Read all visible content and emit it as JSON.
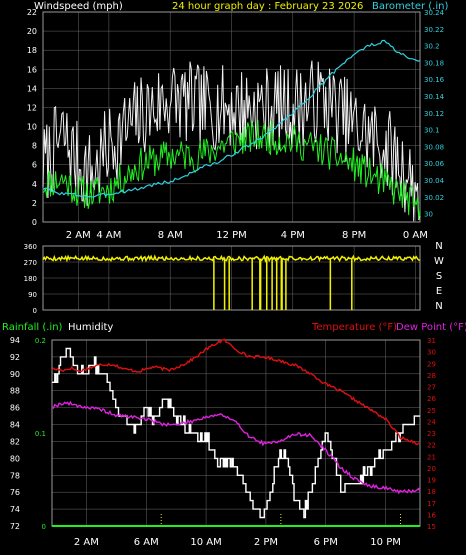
{
  "colors": {
    "background": "#000000",
    "grid": "#6a6a6a",
    "frame": "#9a9a9a",
    "wind_gust": "#f0f0f0",
    "wind_avg": "#22ee22",
    "barometer": "#30d0e0",
    "direction": "#f0f000",
    "humidity": "#ffffff",
    "rainfall": "#22ee22",
    "temperature": "#dd1010",
    "dewpoint": "#dd22dd"
  },
  "chart_data": [
    {
      "type": "line",
      "header": {
        "left": "Windspeed (mph)",
        "center": "24 hour graph day : February 23 2026",
        "right": "Barometer (.in)"
      },
      "y_left": {
        "ticks": [
          "0",
          "2",
          "4",
          "6",
          "8",
          "10",
          "12",
          "14",
          "16",
          "18",
          "20",
          "22"
        ],
        "range": [
          0,
          22
        ]
      },
      "y_right": {
        "ticks": [
          "30",
          "30.02",
          "30.04",
          "30.06",
          "30.08",
          "30.1",
          "30.12",
          "30.14",
          "30.16",
          "30.18",
          "30.2",
          "30.22",
          "30.24"
        ],
        "range": [
          29.99,
          30.24
        ]
      },
      "x_ticks": [
        {
          "label": "2 AM",
          "h": 2
        },
        {
          "label": "4 AM",
          "h": 4
        },
        {
          "label": "8 AM",
          "h": 8
        },
        {
          "label": "12 PM",
          "h": 12
        },
        {
          "label": "4 PM",
          "h": 16
        },
        {
          "label": "8 PM",
          "h": 20
        },
        {
          "label": "0 AM",
          "h": 24
        }
      ],
      "x_range_hours": [
        -0.3,
        24.3
      ],
      "series": [
        {
          "key": "gust",
          "color": "#f0f0f0",
          "anchors": [
            [
              -0.2,
              6
            ],
            [
              1,
              9
            ],
            [
              2,
              6
            ],
            [
              3,
              5
            ],
            [
              4,
              8
            ],
            [
              6,
              11
            ],
            [
              8,
              13
            ],
            [
              10,
              12
            ],
            [
              12,
              12
            ],
            [
              14,
              12
            ],
            [
              16,
              12
            ],
            [
              18,
              13
            ],
            [
              20,
              10
            ],
            [
              22,
              8
            ],
            [
              23.5,
              5
            ],
            [
              24.2,
              3
            ]
          ],
          "jitter": 4.5,
          "seed": 7
        },
        {
          "key": "avg",
          "color": "#22ee22",
          "anchors": [
            [
              -0.2,
              4
            ],
            [
              1,
              4.5
            ],
            [
              2,
              3.2
            ],
            [
              3,
              3
            ],
            [
              4,
              3.5
            ],
            [
              6,
              6
            ],
            [
              8,
              7
            ],
            [
              10,
              7
            ],
            [
              12,
              8.5
            ],
            [
              14,
              9
            ],
            [
              16,
              8.5
            ],
            [
              18,
              7.5
            ],
            [
              20,
              6
            ],
            [
              22,
              4
            ],
            [
              23.5,
              2.5
            ],
            [
              24.2,
              1
            ]
          ],
          "jitter": 1.8,
          "seed": 11
        },
        {
          "key": "barometer",
          "color": "#30d0e0",
          "anchors": [
            [
              -0.2,
              30.03
            ],
            [
              0.5,
              30.025
            ],
            [
              2,
              30.022
            ],
            [
              3,
              30.02
            ],
            [
              4.5,
              30.025
            ],
            [
              6,
              30.03
            ],
            [
              7,
              30.035
            ],
            [
              8,
              30.038
            ],
            [
              9,
              30.045
            ],
            [
              10,
              30.055
            ],
            [
              11,
              30.06
            ],
            [
              12,
              30.07
            ],
            [
              14,
              30.09
            ],
            [
              16,
              30.12
            ],
            [
              18,
              30.155
            ],
            [
              19,
              30.175
            ],
            [
              20,
              30.19
            ],
            [
              21,
              30.2
            ],
            [
              22,
              30.205
            ],
            [
              23,
              30.19
            ],
            [
              24.2,
              30.18
            ]
          ],
          "jitter": 0.002,
          "seed": 3
        }
      ]
    },
    {
      "type": "line",
      "y_left": {
        "ticks": [
          "0",
          "90",
          "180",
          "270",
          "360"
        ],
        "range": [
          0,
          360
        ]
      },
      "y_right_labels": [
        "N",
        "W",
        "S",
        "E",
        "N"
      ],
      "x_range_hours": [
        -0.3,
        24.3
      ],
      "series": [
        {
          "key": "direction",
          "color": "#f0f000",
          "anchors": [
            [
              -0.2,
              290
            ],
            [
              24.2,
              290
            ]
          ],
          "jitter": 12,
          "seed": 5,
          "drops": [
            [
              10.8,
              10.9
            ],
            [
              11.5,
              11.6
            ],
            [
              11.8,
              11.9
            ],
            [
              13.3,
              13.4
            ],
            [
              13.8,
              13.95
            ],
            [
              14.25,
              14.35
            ],
            [
              14.6,
              14.7
            ],
            [
              14.9,
              15.0
            ],
            [
              15.2,
              15.35
            ],
            [
              15.5,
              15.6
            ],
            [
              18.4,
              18.5
            ],
            [
              19.8,
              19.9
            ]
          ]
        }
      ]
    },
    {
      "type": "line",
      "header": {
        "rainfall": "Rainfall (.in)",
        "humidity": "Humidity",
        "temperature": "Temperature (°F)",
        "dewpoint": "Dew Point (°F)"
      },
      "y_left": {
        "ticks": [
          "72",
          "74",
          "76",
          "78",
          "80",
          "82",
          "84",
          "86",
          "88",
          "90",
          "92",
          "94"
        ],
        "range": [
          72,
          94
        ]
      },
      "y_rain": {
        "ticks": [
          "0",
          "0.1",
          "0.2"
        ],
        "range": [
          0,
          0.2
        ]
      },
      "y_right": {
        "ticks": [
          "15",
          "16",
          "17",
          "18",
          "19",
          "20",
          "21",
          "22",
          "23",
          "24",
          "25",
          "26",
          "27",
          "28",
          "29",
          "30",
          "31"
        ],
        "range": [
          15,
          31
        ]
      },
      "x_ticks": [
        {
          "label": "2 AM",
          "h": 2
        },
        {
          "label": "6 AM",
          "h": 6
        },
        {
          "label": "10 AM",
          "h": 10
        },
        {
          "label": "2 PM",
          "h": 14
        },
        {
          "label": "6 PM",
          "h": 18
        },
        {
          "label": "10 PM",
          "h": 22
        }
      ],
      "x_range_hours": [
        -0.3,
        24.3
      ],
      "series": [
        {
          "key": "humidity",
          "color": "#ffffff",
          "axis": "left",
          "anchors": [
            [
              -0.2,
              89
            ],
            [
              0.4,
              92
            ],
            [
              0.8,
              93
            ],
            [
              1.2,
              91
            ],
            [
              1.8,
              90
            ],
            [
              2.5,
              91
            ],
            [
              3.2,
              90
            ],
            [
              4,
              86
            ],
            [
              4.5,
              85
            ],
            [
              5,
              83.5
            ],
            [
              5.5,
              84
            ],
            [
              6,
              86
            ],
            [
              6.5,
              84
            ],
            [
              7,
              86
            ],
            [
              7.5,
              87
            ],
            [
              8,
              85
            ],
            [
              8.5,
              84
            ],
            [
              9,
              83
            ],
            [
              10,
              82.5
            ],
            [
              10.5,
              80.5
            ],
            [
              11,
              79
            ],
            [
              11.5,
              80
            ],
            [
              12,
              79
            ],
            [
              12.5,
              77
            ],
            [
              13,
              75
            ],
            [
              13.5,
              73
            ],
            [
              14,
              74
            ],
            [
              14.5,
              78
            ],
            [
              15,
              81
            ],
            [
              15.5,
              79
            ],
            [
              16,
              75
            ],
            [
              16.5,
              73.5
            ],
            [
              17,
              76
            ],
            [
              17.5,
              80
            ],
            [
              18,
              84
            ],
            [
              18.3,
              81
            ],
            [
              18.8,
              78
            ],
            [
              19,
              76.5
            ],
            [
              19.5,
              76.5
            ],
            [
              20,
              77
            ],
            [
              20.5,
              78
            ],
            [
              21,
              79
            ],
            [
              21.5,
              80
            ],
            [
              22,
              81
            ],
            [
              22.5,
              82
            ],
            [
              23,
              83
            ],
            [
              23.5,
              84
            ],
            [
              24.2,
              85
            ]
          ],
          "jitter": 0.6,
          "seed": 13
        },
        {
          "key": "temperature",
          "color": "#dd1010",
          "axis": "right",
          "anchors": [
            [
              -0.2,
              28.5
            ],
            [
              0.5,
              28.4
            ],
            [
              1,
              28.6
            ],
            [
              1.5,
              28.3
            ],
            [
              2.2,
              28.6
            ],
            [
              3,
              28.9
            ],
            [
              3.8,
              28.9
            ],
            [
              4.5,
              28.5
            ],
            [
              5.5,
              28.3
            ],
            [
              6.5,
              28.7
            ],
            [
              7.5,
              28.4
            ],
            [
              8.5,
              28.9
            ],
            [
              9.3,
              29.5
            ],
            [
              10,
              30.2
            ],
            [
              10.8,
              30.8
            ],
            [
              11.2,
              31
            ],
            [
              11.6,
              30.6
            ],
            [
              12,
              30.2
            ],
            [
              12.8,
              29.6
            ],
            [
              14,
              29.5
            ],
            [
              15,
              29.2
            ],
            [
              16,
              28.8
            ],
            [
              17,
              28.1
            ],
            [
              18,
              27.2
            ],
            [
              19,
              26.6
            ],
            [
              20,
              25.8
            ],
            [
              21,
              25
            ],
            [
              22,
              24.2
            ],
            [
              23,
              22.6
            ],
            [
              24.2,
              22.1
            ]
          ],
          "jitter": 0.12,
          "seed": 17
        },
        {
          "key": "dewpoint",
          "color": "#dd22dd",
          "axis": "right",
          "anchors": [
            [
              -0.2,
              25.3
            ],
            [
              0.5,
              25.6
            ],
            [
              1,
              25.5
            ],
            [
              2,
              25.2
            ],
            [
              3,
              25
            ],
            [
              4,
              24.5
            ],
            [
              5,
              24.4
            ],
            [
              6,
              24.2
            ],
            [
              7,
              23.8
            ],
            [
              8,
              23.7
            ],
            [
              9,
              24
            ],
            [
              10,
              24.4
            ],
            [
              11,
              24.6
            ],
            [
              12,
              23.9
            ],
            [
              13,
              22.6
            ],
            [
              14,
              22
            ],
            [
              15,
              22.4
            ],
            [
              16,
              22.9
            ],
            [
              17,
              22.8
            ],
            [
              18,
              21.5
            ],
            [
              19,
              20
            ],
            [
              20,
              19
            ],
            [
              21,
              18.4
            ],
            [
              22,
              18.3
            ],
            [
              23,
              17.9
            ],
            [
              24.2,
              18.1
            ]
          ],
          "jitter": 0.15,
          "seed": 19
        },
        {
          "key": "rainfall",
          "color": "#22ee22",
          "axis": "rain",
          "anchors": [
            [
              -0.2,
              0
            ],
            [
              24.2,
              0
            ]
          ],
          "jitter": 0,
          "seed": 1
        }
      ]
    }
  ]
}
